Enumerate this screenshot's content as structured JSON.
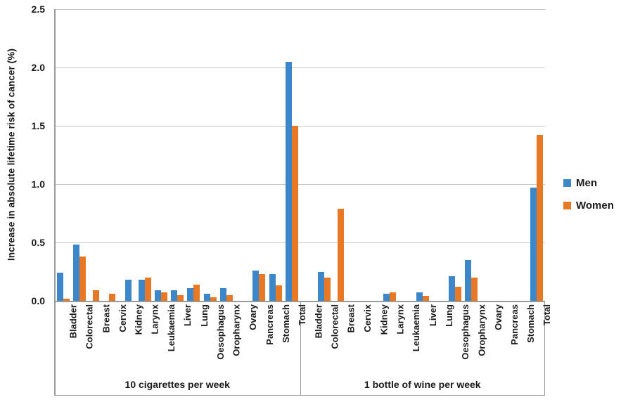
{
  "chart_data": {
    "type": "bar",
    "title": "",
    "ylabel": "Increase in absolute lifetime risk of cancer (%)",
    "xlabel": "",
    "ylim": [
      0,
      2.5
    ],
    "yticks": [
      "0.0",
      "0.5",
      "1.0",
      "1.5",
      "2.0",
      "2.5"
    ],
    "grid": true,
    "legend_position": "right",
    "series": [
      {
        "name": "Men",
        "color": "#3b87c9"
      },
      {
        "name": "Women",
        "color": "#e97825"
      }
    ],
    "categories": [
      "Bladder",
      "Colorectal",
      "Breast",
      "Cervix",
      "Kidney",
      "Larynx",
      "Leukaemia",
      "Liver",
      "Lung",
      "Oesophagus",
      "Oropharynx",
      "Ovary",
      "Pancreas",
      "Stomach",
      "Total"
    ],
    "groups": [
      {
        "label": "10 cigarettes per week",
        "values": {
          "Men": [
            0.24,
            0.48,
            0,
            0,
            0.18,
            0.18,
            0.09,
            0.09,
            0.11,
            0.06,
            0.11,
            0,
            0.26,
            0.23,
            2.05
          ],
          "Women": [
            0.02,
            0.38,
            0.09,
            0.06,
            0,
            0.2,
            0.07,
            0.05,
            0.14,
            0.03,
            0.05,
            0,
            0.23,
            0.13,
            1.5
          ]
        }
      },
      {
        "label": "1 bottle of wine per week",
        "values": {
          "Men": [
            0,
            0.25,
            0,
            0,
            0,
            0.06,
            0,
            0.07,
            0,
            0.21,
            0.35,
            0,
            0,
            0,
            0.97
          ],
          "Women": [
            0,
            0.2,
            0.79,
            0,
            0,
            0.07,
            0,
            0.04,
            0,
            0.12,
            0.2,
            0,
            0,
            0,
            1.42
          ]
        }
      }
    ]
  },
  "colors": {
    "gridline": "#c6c6c6",
    "axis": "#9a9a9a",
    "text": "#1a1a1a"
  }
}
